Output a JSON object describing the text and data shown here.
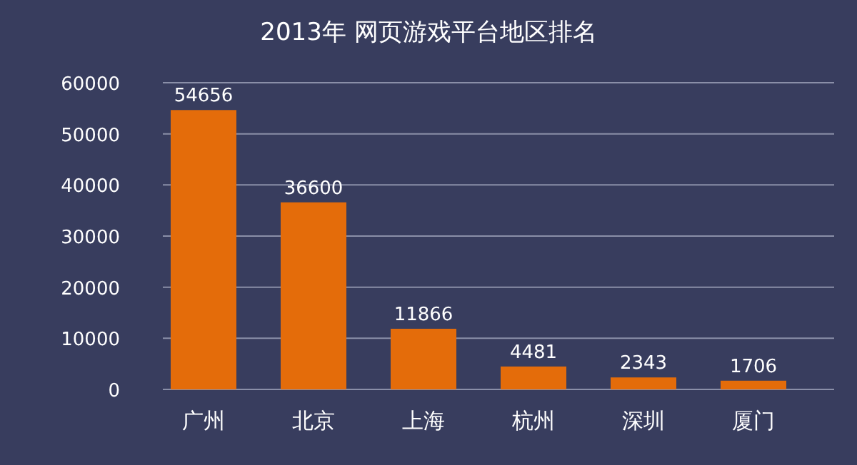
{
  "chart_data": {
    "type": "bar",
    "title": "2013年 网页游戏平台地区排名",
    "categories": [
      "广州",
      "北京",
      "上海",
      "杭州",
      "深圳",
      "厦门"
    ],
    "values": [
      54656,
      36600,
      11866,
      4481,
      2343,
      1706
    ],
    "color": "#e46c0a",
    "ylim": [
      0,
      60000
    ],
    "yticks": [
      0,
      10000,
      20000,
      30000,
      40000,
      50000,
      60000
    ],
    "grid": "y",
    "data_labels": true
  }
}
